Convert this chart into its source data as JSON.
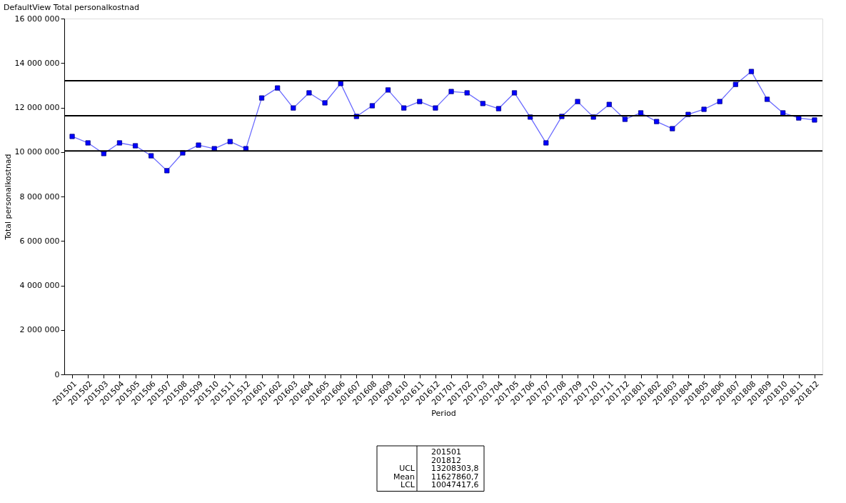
{
  "chart_data": {
    "type": "line",
    "title": "DefaultView Total personalkostnad",
    "xlabel": "Period",
    "ylabel": "Total personalkostnad",
    "categories": [
      "201501",
      "201502",
      "201503",
      "201504",
      "201505",
      "201506",
      "201507",
      "201508",
      "201509",
      "201510",
      "201511",
      "201512",
      "201601",
      "201602",
      "201603",
      "201604",
      "201605",
      "201606",
      "201607",
      "201608",
      "201609",
      "201610",
      "201611",
      "201612",
      "201701",
      "201702",
      "201703",
      "201704",
      "201705",
      "201706",
      "201707",
      "201708",
      "201709",
      "201710",
      "201711",
      "201712",
      "201801",
      "201802",
      "201803",
      "201804",
      "201805",
      "201806",
      "201807",
      "201808",
      "201809",
      "201810",
      "201811",
      "201812"
    ],
    "series": [
      {
        "color": "#0000ff",
        "values": [
          10700000,
          10410000,
          9930000,
          10410000,
          10280000,
          9830000,
          9160000,
          9960000,
          10310000,
          10150000,
          10470000,
          10150000,
          12430000,
          12880000,
          11980000,
          12660000,
          12210000,
          13080000,
          11600000,
          12080000,
          12790000,
          11980000,
          12270000,
          11980000,
          12720000,
          12660000,
          12180000,
          11950000,
          12660000,
          11570000,
          10410000,
          11600000,
          12270000,
          11570000,
          12140000,
          11470000,
          11760000,
          11370000,
          11050000,
          11690000,
          11920000,
          12270000,
          13040000,
          13620000,
          12370000,
          11760000,
          11530000,
          11440000
        ]
      }
    ],
    "ylim": [
      0,
      16000000
    ],
    "yticks": [
      {
        "value": 0,
        "label": "0"
      },
      {
        "value": 2000000,
        "label": "2 000 000"
      },
      {
        "value": 4000000,
        "label": "4 000 000"
      },
      {
        "value": 6000000,
        "label": "6 000 000"
      },
      {
        "value": 8000000,
        "label": "8 000 000"
      },
      {
        "value": 10000000,
        "label": "10 000 000"
      },
      {
        "value": 12000000,
        "label": "12 000 000"
      },
      {
        "value": 14000000,
        "label": "14 000 000"
      },
      {
        "value": 16000000,
        "label": "16 000 000"
      }
    ],
    "ref_lines": [
      {
        "axis": "y",
        "value": 13208303.8,
        "color": "#000000"
      },
      {
        "axis": "y",
        "value": 11627860.7,
        "color": "#000000"
      },
      {
        "axis": "y",
        "value": 10047417.6,
        "color": "#000000"
      }
    ],
    "annotations": [
      "201501",
      "201812",
      "UCL",
      "Mean",
      "LCL",
      "13208303,8",
      "11627860,7",
      "10047417,6"
    ],
    "marker": "square",
    "line_style": "solid",
    "grid": false
  }
}
